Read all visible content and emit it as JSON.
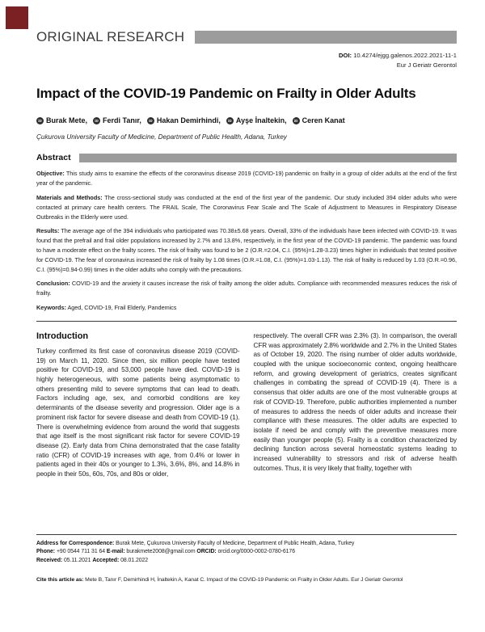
{
  "colors": {
    "marker_red": "#7b2023",
    "bar_gray": "#9c9c9c"
  },
  "icons": {
    "orcid_glyph": "iD"
  },
  "header": {
    "category": "ORIGINAL RESEARCH",
    "doi_label": "DOI:",
    "doi_value": "10.4274/ejgg.galenos.2022.2021-11-1",
    "journal": "Eur J Geriatr Gerontol"
  },
  "article": {
    "title": "Impact of the COVID-19 Pandemic on Frailty in Older Adults",
    "authors": [
      "Burak Mete,",
      "Ferdi Tanır,",
      "Hakan Demirhindi,",
      "Ayşe İnaltekin,",
      "Ceren Kanat"
    ],
    "affiliation": "Çukurova University Faculty of Medicine, Department of Public Health, Adana, Turkey"
  },
  "abstract": {
    "heading": "Abstract",
    "sections": [
      {
        "label": "Objective:",
        "text": "This study aims to examine the effects of the coronavirus disease 2019 (COVID-19) pandemic on frailty in a group of older adults at the end of the first year of the pandemic."
      },
      {
        "label": "Materials and Methods:",
        "text": "The cross-sectional study was conducted at the end of the first year of the pandemic. Our study included 394 older adults who were contacted at primary care health centers. The FRAIL Scale, The Coronavirus Fear Scale and The Scale of Adjustment to Measures in Respiratory Disease Outbreaks in the Elderly were used."
      },
      {
        "label": "Results:",
        "text": "The average age of the 394 individuals who participated was 70.38±5.68 years. Overall, 33% of the individuals have been infected with COVID-19. It was found that the prefrail and frail older populations increased by 2.7% and 13.8%, respectively, in the first year of the COVID-19 pandemic. The pandemic was found to have a moderate effect on the frailty scores. The risk of frailty was found to be 2 (O.R.=2.04, C.I. (95%)=1.28-3.23) times higher in individuals that tested positive for COVID-19. The fear of coronavirus increased the risk of frailty by 1.08 times (O.R.=1.08, C.I. (95%)=1.03-1.13). The risk of frailty is reduced by 1.03 (O.R.=0.96, C.I. (95%)=0.94-0.99) times in the older adults who comply with the precautions."
      },
      {
        "label": "Conclusion:",
        "text": "COVID-19 and the anxiety it causes increase the risk of frailty among the older adults. Compliance with recommended measures reduces the risk of frailty."
      }
    ],
    "keywords_label": "Keywords:",
    "keywords": "Aged, COVID-19, Frail Elderly, Pandemics"
  },
  "body": {
    "intro_heading": "Introduction",
    "left_column": "Turkey confirmed its first case of coronavirus disease 2019 (COVID-19) on March 11, 2020. Since then, six million people have tested positive for COVID-19, and 53,000 people have died. COVID-19 is highly heterogeneous, with some patients being asymptomatic to others presenting mild to severe symptoms that can lead to death. Factors including age, sex, and comorbid conditions are key determinants of the disease severity and progression. Older age is a prominent risk factor for severe disease and death from COVID-19 (1). There is overwhelming evidence from around the world that suggests that age itself is the most significant risk factor for severe COVID-19 disease (2). Early data from China demonstrated that the case fatality ratio (CFR) of COVID-19 increases with age, from 0.4% or lower in patients aged in their 40s or younger to 1.3%, 3.6%, 8%, and 14.8% in people in their 50s, 60s, 70s, and 80s or older,",
    "right_column": "respectively. The overall CFR was 2.3% (3). In comparison, the overall CFR was approximately 2.8% worldwide and 2.7% in the United States as of October 19, 2020. The rising number of older adults worldwide, coupled with the unique socioeconomic context, ongoing healthcare reform, and growing development of geriatrics, creates significant challenges in combating the spread of COVID-19 (4). There is a consensus that older adults are one of the most vulnerable groups at risk of COVID-19. Therefore, public authorities implemented a number of measures to address the needs of older adults and increase their compliance with these measures. The older adults are expected to isolate if need be and comply with the preventive measures more easily than younger people (5). Frailty is a condition characterized by declining function across several homeostatic systems leading to increased vulnerability to stressors and risk of adverse health outcomes. Thus, it is very likely that frailty, together with"
  },
  "footer": {
    "address_label": "Address for Correspondence:",
    "address": "Burak Mete, Çukurova University Faculty of Medicine, Department of Public Health, Adana, Turkey",
    "phone_label": "Phone:",
    "phone": "+90 0544 711 31 64",
    "email_label": "E-mail:",
    "email": "burakmete2008@gmail.com",
    "orcid_label": "ORCID:",
    "orcid": "orcid.org/0000-0002-0780-6176",
    "received_label": "Received:",
    "received": "05.11.2021",
    "accepted_label": "Accepted:",
    "accepted": "08.01.2022",
    "cite_label": "Cite this article as:",
    "cite": "Mete B, Tanır F, Demirhindi H, İnaltekin A, Kanat C. Impact of the COVID-19 Pandemic on Frailty in Older Adults. Eur J Geriatr Gerontol"
  }
}
